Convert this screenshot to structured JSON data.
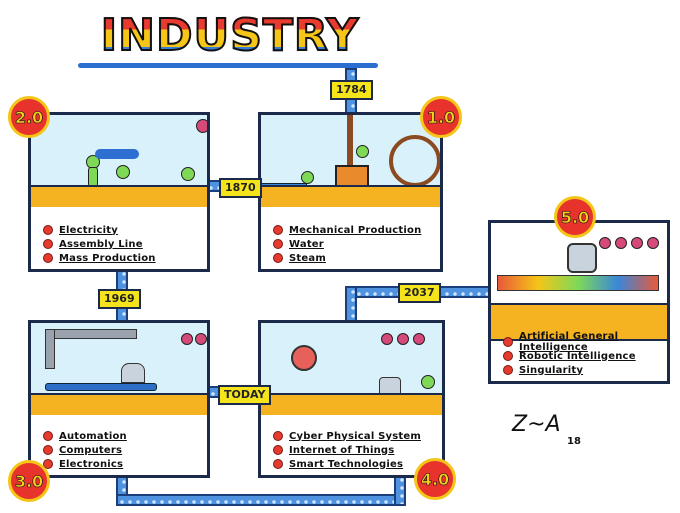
{
  "title": "INDUSTRY",
  "panels": {
    "p1": {
      "badge": "1.0",
      "year": "1784",
      "items": [
        "Mechanical Production",
        "Water",
        "Steam"
      ]
    },
    "p2": {
      "badge": "2.0",
      "year": "1870",
      "items": [
        "Electricity",
        "Assembly Line",
        "Mass Production"
      ]
    },
    "p3": {
      "badge": "3.0",
      "year": "1969",
      "items": [
        "Automation",
        "Computers",
        "Electronics"
      ]
    },
    "p4": {
      "badge": "4.0",
      "year": "Today",
      "items": [
        "Cyber Physical System",
        "Internet of Things",
        "Smart Technologies"
      ]
    },
    "p5": {
      "badge": "5.0",
      "year": "2037",
      "items": [
        "Artificial General Intelligence",
        "Robotic Intelligence",
        "Singularity"
      ]
    }
  },
  "signature": {
    "mark": "Z~A",
    "year": "18"
  },
  "colors": {
    "badge": "#e8322c",
    "badge_text": "#f5d21c",
    "pipe": "#4f93e0",
    "floor": "#f6b321",
    "sky": "#d9f1fb",
    "bullet": "#e53b2f"
  }
}
